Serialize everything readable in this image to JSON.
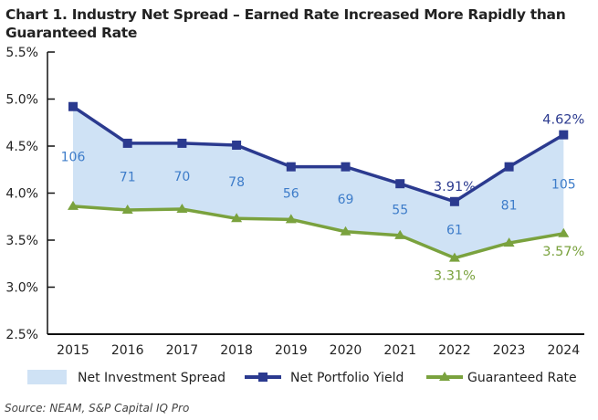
{
  "chart_data": {
    "type": "line",
    "title": "Chart 1. Industry Net Spread – Earned Rate Increased More Rapidly than Guaranteed Rate",
    "categories": [
      "2015",
      "2016",
      "2017",
      "2018",
      "2019",
      "2020",
      "2021",
      "2022",
      "2023",
      "2024"
    ],
    "ylim": [
      2.5,
      5.5
    ],
    "yticks": [
      "5.5%",
      "5.0%",
      "4.5%",
      "4.0%",
      "3.5%",
      "3.0%",
      "2.5%"
    ],
    "grid": false,
    "legend_placement": "bottom",
    "series": [
      {
        "name": "Net Portfolio Yield",
        "color": "#2b3a8f",
        "marker": "square",
        "values": [
          4.92,
          4.53,
          4.53,
          4.51,
          4.28,
          4.28,
          4.1,
          3.91,
          4.28,
          4.62
        ]
      },
      {
        "name": "Guaranteed Rate",
        "color": "#7aa23e",
        "marker": "triangle",
        "values": [
          3.86,
          3.82,
          3.83,
          3.73,
          3.72,
          3.59,
          3.55,
          3.31,
          3.47,
          3.57
        ]
      }
    ],
    "spread": {
      "name": "Net Investment Spread",
      "color": "#cfe2f5",
      "label_color": "#3d7cc9",
      "values_bps": [
        106,
        71,
        70,
        78,
        56,
        69,
        55,
        61,
        81,
        105
      ]
    },
    "annotations": [
      {
        "series": "Net Portfolio Yield",
        "category": "2022",
        "text": "3.91%"
      },
      {
        "series": "Net Portfolio Yield",
        "category": "2024",
        "text": "4.62%"
      },
      {
        "series": "Guaranteed Rate",
        "category": "2022",
        "text": "3.31%"
      },
      {
        "series": "Guaranteed Rate",
        "category": "2024",
        "text": "3.57%"
      }
    ]
  },
  "source": "Source: NEAM, S&P Capital IQ Pro"
}
